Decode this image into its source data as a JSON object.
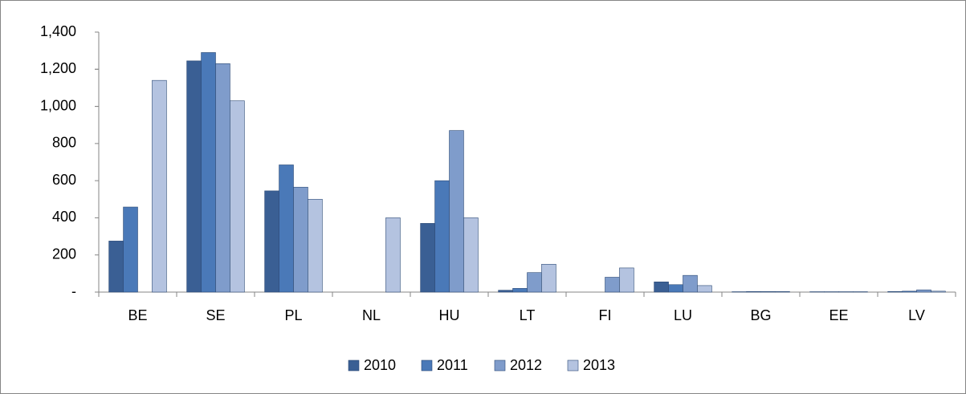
{
  "chart_data": {
    "type": "bar",
    "categories": [
      "BE",
      "SE",
      "PL",
      "NL",
      "HU",
      "LT",
      "FI",
      "LU",
      "BG",
      "EE",
      "LV"
    ],
    "series": [
      {
        "name": "2010",
        "color": "#3a5f94",
        "values": [
          275,
          1245,
          545,
          0,
          370,
          10,
          0,
          55,
          2,
          2,
          3
        ]
      },
      {
        "name": "2011",
        "color": "#4a79b8",
        "values": [
          458,
          1290,
          685,
          0,
          600,
          20,
          0,
          40,
          3,
          2,
          5
        ]
      },
      {
        "name": "2012",
        "color": "#7f9ccb",
        "values": [
          0,
          1230,
          565,
          0,
          870,
          105,
          80,
          90,
          3,
          2,
          12
        ]
      },
      {
        "name": "2013",
        "color": "#b4c3e0",
        "values": [
          1140,
          1030,
          500,
          400,
          400,
          150,
          130,
          35,
          3,
          2,
          5
        ]
      }
    ],
    "ylim": [
      0,
      1400
    ],
    "yticks": [
      {
        "value": 0,
        "label": "-"
      },
      200,
      400,
      600,
      800,
      1000,
      1200,
      {
        "value": 1000,
        "label": "1,000"
      },
      {
        "value": 1200,
        "label": "1,200"
      },
      {
        "value": 1400,
        "label": "1,400"
      }
    ],
    "grid": false,
    "legend": "bottom"
  }
}
